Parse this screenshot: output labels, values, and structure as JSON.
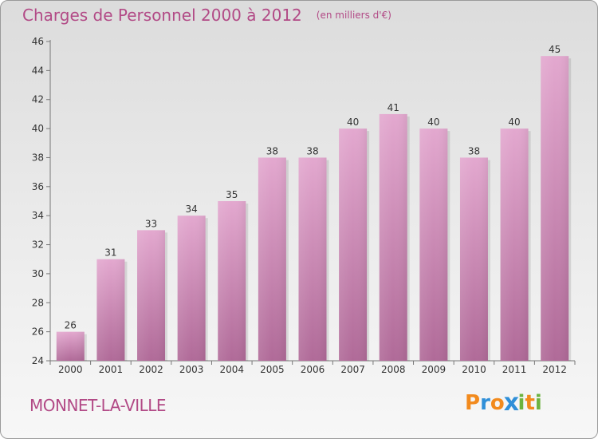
{
  "chart_title": "Charges de Personnel 2000 à 2012",
  "chart_subtitle": "(en milliers d'€)",
  "commune": "MONNET-LA-VILLE",
  "logo": {
    "text": "Proxiti",
    "letters": [
      "P",
      "r",
      "o",
      "x",
      "i",
      "t",
      "i"
    ],
    "colors": [
      "#f28a1d",
      "#2f8fd8",
      "#f28a1d",
      "#2f8fd8",
      "#6cb33f",
      "#f28a1d",
      "#6cb33f"
    ]
  },
  "colors": {
    "title": "#b24a86",
    "bar_top": "#e3a8cf",
    "bar_bottom": "#b06a98"
  },
  "chart_data": {
    "type": "bar",
    "title": "Charges de Personnel 2000 à 2012",
    "subtitle": "(en milliers d'€)",
    "categories": [
      "2000",
      "2001",
      "2002",
      "2003",
      "2004",
      "2005",
      "2006",
      "2007",
      "2008",
      "2009",
      "2010",
      "2011",
      "2012"
    ],
    "values": [
      26,
      31,
      33,
      34,
      35,
      38,
      38,
      40,
      41,
      40,
      38,
      40,
      45
    ],
    "ylim": [
      24,
      46
    ],
    "yticks": [
      24,
      26,
      28,
      30,
      32,
      34,
      36,
      38,
      40,
      42,
      44,
      46
    ],
    "grid": false,
    "data_labels": true
  }
}
